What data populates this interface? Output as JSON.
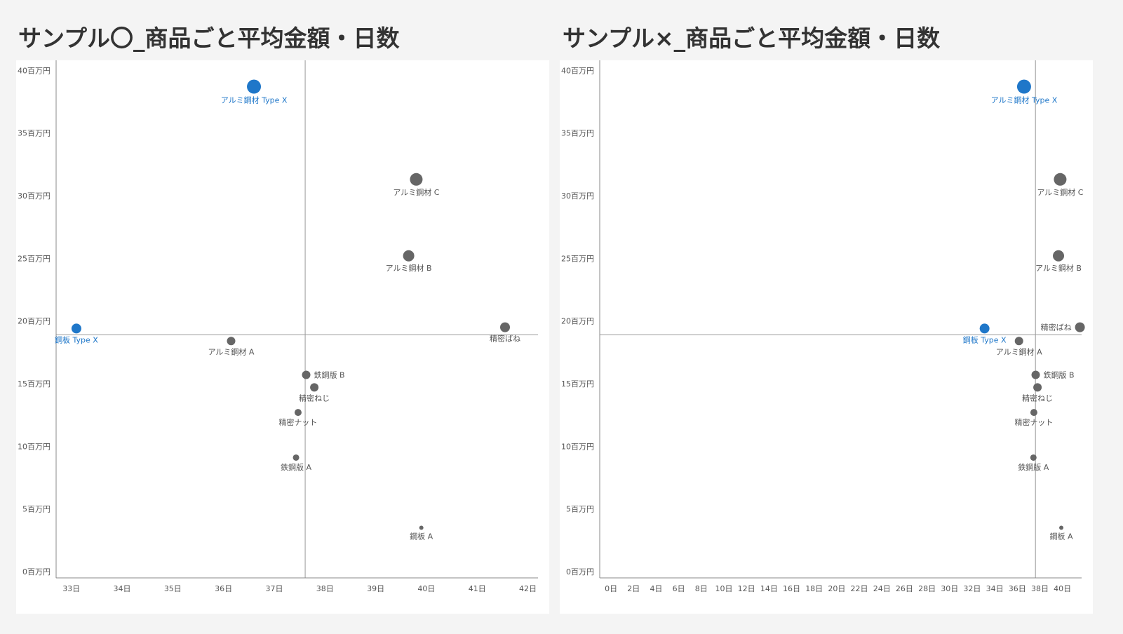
{
  "colors": {
    "highlight": "#1f77c9",
    "normal": "#666666",
    "axis": "#888888",
    "reference_line": "#999999",
    "text": "#555555"
  },
  "chart_data": [
    {
      "type": "scatter",
      "title": "サンプル〇_商品ごと平均金額・日数",
      "xlabel": "",
      "ylabel": "",
      "xlim": [
        32.7,
        42.2
      ],
      "ylim": [
        -0.5,
        40.8
      ],
      "x_ticks": [
        33,
        34,
        35,
        36,
        37,
        38,
        39,
        40,
        41,
        42
      ],
      "x_tick_labels": [
        "33日",
        "34日",
        "35日",
        "36日",
        "37日",
        "38日",
        "39日",
        "40日",
        "41日",
        "42日"
      ],
      "y_ticks": [
        0,
        5,
        10,
        15,
        20,
        25,
        30,
        35,
        40
      ],
      "y_tick_labels": [
        "0百万円",
        "5百万円",
        "10百万円",
        "15百万円",
        "20百万円",
        "25百万円",
        "30百万円",
        "35百万円",
        "40百万円"
      ],
      "reference_lines": {
        "x": 37.61,
        "y": 18.9
      },
      "grid": false,
      "points": [
        {
          "label": "アルミ鋼材 Type X",
          "x": 36.6,
          "y": 38.7,
          "size": 20,
          "highlight": true,
          "label_pos": "below"
        },
        {
          "label": "鋼板 Type X",
          "x": 33.1,
          "y": 19.4,
          "size": 14,
          "highlight": true,
          "label_pos": "below"
        },
        {
          "label": "アルミ鋼材 C",
          "x": 39.8,
          "y": 31.3,
          "size": 18,
          "highlight": false,
          "label_pos": "below"
        },
        {
          "label": "アルミ鋼材 B",
          "x": 39.65,
          "y": 25.2,
          "size": 16,
          "highlight": false,
          "label_pos": "below"
        },
        {
          "label": "精密ばね",
          "x": 41.55,
          "y": 19.5,
          "size": 14,
          "highlight": false,
          "label_pos": "below"
        },
        {
          "label": "アルミ鋼材 A",
          "x": 36.15,
          "y": 18.4,
          "size": 12,
          "highlight": false,
          "label_pos": "below"
        },
        {
          "label": "鉄鋼版 B",
          "x": 37.63,
          "y": 15.7,
          "size": 12,
          "highlight": false,
          "label_pos": "right"
        },
        {
          "label": "精密ねじ",
          "x": 37.79,
          "y": 14.7,
          "size": 12,
          "highlight": false,
          "label_pos": "below"
        },
        {
          "label": "精密ナット",
          "x": 37.47,
          "y": 12.7,
          "size": 10,
          "highlight": false,
          "label_pos": "below"
        },
        {
          "label": "鉄鋼版 A",
          "x": 37.43,
          "y": 9.1,
          "size": 9,
          "highlight": false,
          "label_pos": "below"
        },
        {
          "label": "鋼板 A",
          "x": 39.9,
          "y": 3.5,
          "size": 6,
          "highlight": false,
          "label_pos": "below"
        }
      ]
    },
    {
      "type": "scatter",
      "title": "サンプル×_商品ごと平均金額・日数",
      "xlabel": "",
      "ylabel": "",
      "xlim": [
        -1.0,
        41.7
      ],
      "ylim": [
        -0.5,
        40.8
      ],
      "x_ticks": [
        0,
        2,
        4,
        6,
        8,
        10,
        12,
        14,
        16,
        18,
        20,
        22,
        24,
        26,
        28,
        30,
        32,
        34,
        36,
        38,
        40
      ],
      "x_tick_labels": [
        "0日",
        "2日",
        "4日",
        "6日",
        "8日",
        "10日",
        "12日",
        "14日",
        "16日",
        "18日",
        "20日",
        "22日",
        "24日",
        "26日",
        "28日",
        "30日",
        "32日",
        "34日",
        "36日",
        "38日",
        "40日"
      ],
      "y_ticks": [
        0,
        5,
        10,
        15,
        20,
        25,
        30,
        35,
        40
      ],
      "y_tick_labels": [
        "0百万円",
        "5百万円",
        "10百万円",
        "15百万円",
        "20百万円",
        "25百万円",
        "30百万円",
        "35百万円",
        "40百万円"
      ],
      "reference_lines": {
        "x": 37.61,
        "y": 18.9
      },
      "grid": false,
      "points": [
        {
          "label": "アルミ鋼材 Type X",
          "x": 36.6,
          "y": 38.7,
          "size": 20,
          "highlight": true,
          "label_pos": "below"
        },
        {
          "label": "鋼板 Type X",
          "x": 33.1,
          "y": 19.4,
          "size": 14,
          "highlight": true,
          "label_pos": "below"
        },
        {
          "label": "アルミ鋼材 C",
          "x": 39.8,
          "y": 31.3,
          "size": 18,
          "highlight": false,
          "label_pos": "below"
        },
        {
          "label": "アルミ鋼材 B",
          "x": 39.65,
          "y": 25.2,
          "size": 16,
          "highlight": false,
          "label_pos": "below"
        },
        {
          "label": "精密ばね",
          "x": 41.55,
          "y": 19.5,
          "size": 14,
          "highlight": false,
          "label_pos": "left"
        },
        {
          "label": "アルミ鋼材 A",
          "x": 36.15,
          "y": 18.4,
          "size": 12,
          "highlight": false,
          "label_pos": "below"
        },
        {
          "label": "鉄鋼版 B",
          "x": 37.63,
          "y": 15.7,
          "size": 12,
          "highlight": false,
          "label_pos": "right"
        },
        {
          "label": "精密ねじ",
          "x": 37.79,
          "y": 14.7,
          "size": 12,
          "highlight": false,
          "label_pos": "below"
        },
        {
          "label": "精密ナット",
          "x": 37.47,
          "y": 12.7,
          "size": 10,
          "highlight": false,
          "label_pos": "below"
        },
        {
          "label": "鉄鋼版 A",
          "x": 37.43,
          "y": 9.1,
          "size": 9,
          "highlight": false,
          "label_pos": "below"
        },
        {
          "label": "鋼板 A",
          "x": 39.9,
          "y": 3.5,
          "size": 6,
          "highlight": false,
          "label_pos": "below"
        }
      ]
    }
  ]
}
